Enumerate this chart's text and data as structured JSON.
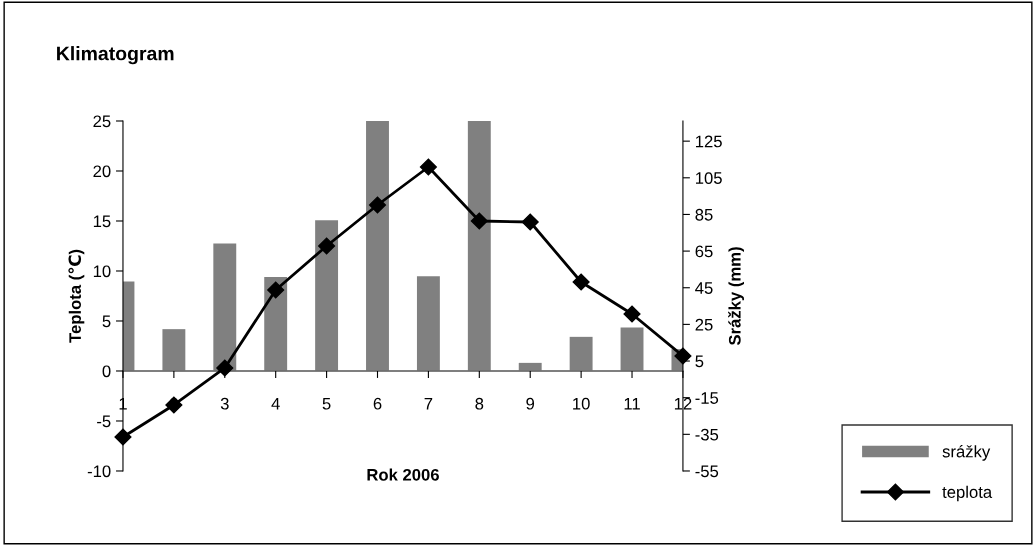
{
  "chart_data": {
    "type": "bar",
    "title": "Klimatogram",
    "xlabel": "Rok 2006",
    "ylabel": "Teplota (℃)",
    "y2label": "Srážky (mm)",
    "categories": [
      "1",
      "2",
      "3",
      "4",
      "5",
      "6",
      "7",
      "8",
      "9",
      "10",
      "11",
      "12"
    ],
    "series": [
      {
        "name": "srážky",
        "axis": "y2",
        "color": "#808080",
        "values": [
          48.4,
          22.4,
          69.1,
          50.9,
          81.8,
          136,
          51.3,
          136,
          4.0,
          18.2,
          23.3,
          11.5
        ]
      },
      {
        "name": "teplota",
        "type": "line",
        "color": "#000000",
        "marker": "diamond",
        "values": [
          -6.6,
          -3.4,
          0.3,
          8.1,
          12.5,
          16.6,
          20.4,
          15.0,
          14.9,
          8.9,
          5.7,
          1.5
        ]
      }
    ],
    "ylim": [
      -10,
      25
    ],
    "yticks": [
      -10,
      -5,
      0,
      5,
      10,
      15,
      20,
      25
    ],
    "y2lim": [
      -55,
      136
    ],
    "y2ticks": [
      -55,
      -35,
      -15,
      5,
      25,
      45,
      65,
      85,
      105,
      125
    ],
    "grid": false,
    "legend": "bottom right"
  }
}
